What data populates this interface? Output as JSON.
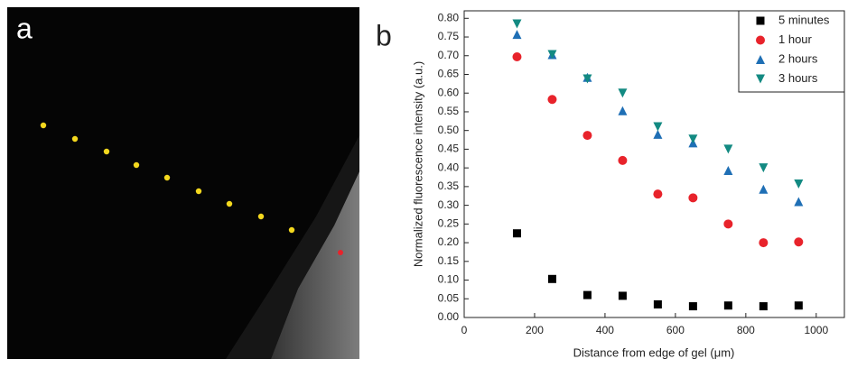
{
  "panel_labels": [
    "a",
    "b"
  ],
  "chart_data": {
    "type": "scatter",
    "x_label": "Distance from edge of gel (μm)",
    "y_label": "Normalized fluorescence intensity (a.u.)",
    "x": [
      150,
      250,
      350,
      450,
      550,
      650,
      750,
      850,
      950
    ],
    "series": [
      {
        "name": "5 minutes",
        "color": "#000000",
        "marker": "square",
        "values": [
          0.225,
          0.103,
          0.06,
          0.058,
          0.035,
          0.03,
          0.032,
          0.03,
          0.032
        ]
      },
      {
        "name": "1 hour",
        "color": "#e8232b",
        "marker": "circle",
        "values": [
          0.697,
          0.583,
          0.487,
          0.42,
          0.33,
          0.32,
          0.25,
          0.2,
          0.202
        ]
      },
      {
        "name": "2 hours",
        "color": "#1f6fb5",
        "marker": "triangle-up",
        "values": [
          0.757,
          0.703,
          0.642,
          0.553,
          0.49,
          0.467,
          0.393,
          0.343,
          0.31
        ]
      },
      {
        "name": "3 hours",
        "color": "#138a82",
        "marker": "triangle-down",
        "values": [
          0.785,
          0.703,
          0.638,
          0.6,
          0.51,
          0.477,
          0.45,
          0.4,
          0.357
        ]
      }
    ],
    "xlim": [
      0,
      1080
    ],
    "ylim": [
      0,
      0.82
    ],
    "xticks": [
      0,
      200,
      400,
      600,
      800,
      1000
    ],
    "yticks": [
      {
        "value": 0,
        "label": "0.00"
      },
      {
        "value": 0.05,
        "label": "0.05"
      },
      {
        "value": 0.1,
        "label": "0.10"
      },
      {
        "value": 0.15,
        "label": "0.15"
      },
      {
        "value": 0.2,
        "label": "0.20"
      },
      {
        "value": 0.25,
        "label": "0.25"
      },
      {
        "value": 0.3,
        "label": "0.30"
      },
      {
        "value": 0.35,
        "label": "0.35"
      },
      {
        "value": 0.4,
        "label": "0.40"
      },
      {
        "value": 0.45,
        "label": "0.45"
      },
      {
        "value": 0.5,
        "label": "0.50"
      },
      {
        "value": 0.55,
        "label": "0.55"
      },
      {
        "value": 0.6,
        "label": "0.60"
      },
      {
        "value": 0.65,
        "label": "0.65"
      },
      {
        "value": 0.7,
        "label": "0.70"
      },
      {
        "value": 0.75,
        "label": "0.75"
      },
      {
        "value": 0.8,
        "label": "0.80"
      }
    ],
    "legend": "upper right"
  }
}
